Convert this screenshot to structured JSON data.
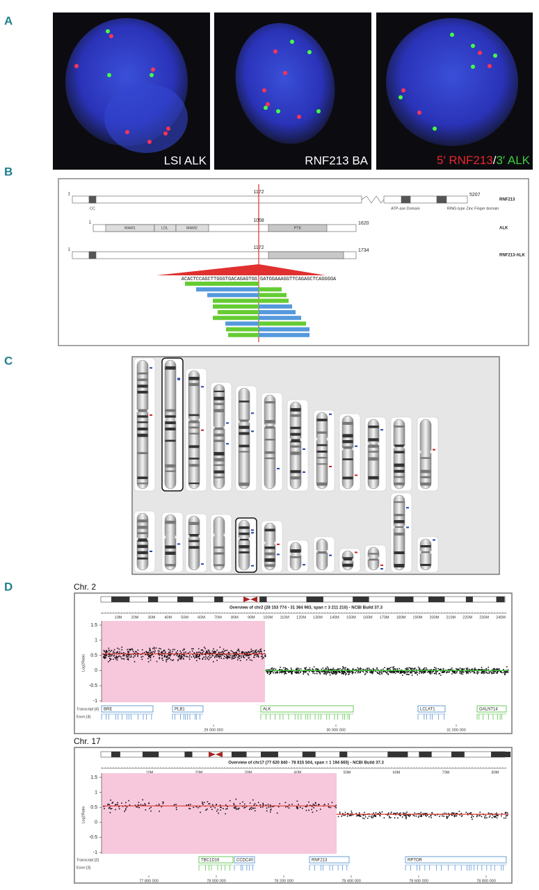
{
  "panel_a": {
    "letter": "A",
    "captions": [
      "LSI ALK",
      "RNF213 BA"
    ],
    "caption3": {
      "left": "5′ RNF213",
      "sep": "/",
      "right": "3′ ALK"
    }
  },
  "panel_b": {
    "letter": "B",
    "rnf213": {
      "start": "1",
      "break": "1172",
      "end": "5207",
      "name": "RNF213",
      "domains": [
        "CC",
        "ATP-ase Domain",
        "RING-type Zinc Finger domain"
      ]
    },
    "alk": {
      "start": "1",
      "break": "1058",
      "end": "1620",
      "name": "ALK",
      "domains": [
        "MAM1",
        "LDL",
        "MAM2",
        "PTK"
      ]
    },
    "fusion": {
      "start": "1",
      "break": "1172",
      "end": "1734",
      "name": "RNF213-ALK"
    },
    "sequence": {
      "left": "ACACTCCAGCTTGGGTGACAGAGTGG",
      "right": "GATGGAAAGGTTCAGAGCTCAGGGGA"
    }
  },
  "panel_c": {
    "letter": "C"
  },
  "panel_d": {
    "letter": "D",
    "plots": [
      {
        "label": "Chr. 2",
        "overview": "Overview of chr2 (28 153 774 - 31 364 983, span = 3 211 210) - NCBI Build 37.3",
        "ruler": [
          "10M",
          "20M",
          "30M",
          "40M",
          "50M",
          "60M",
          "70M",
          "80M",
          "90M",
          "100M",
          "110M",
          "120M",
          "130M",
          "140M",
          "150M",
          "160M",
          "170M",
          "180M",
          "190M",
          "200M",
          "210M",
          "220M",
          "230M",
          "240M"
        ],
        "y_axis_label": "Log2Ratio",
        "yticks": [
          "1.5",
          "1",
          "0.5",
          "0",
          "-0.5",
          "-1"
        ],
        "transcript": "Transcript [4]",
        "exon": "Exon [4]",
        "genes": [
          "BRE",
          "PLB1",
          "ALK",
          "LCLAT1",
          "GALNT14"
        ],
        "positions": [
          "29 000 000",
          "30 000 000",
          "31 000 000"
        ]
      },
      {
        "label": "Chr. 17",
        "overview": "Overview of chr17 (77 620 840 - 78 815 504, span = 1 194 665) - NCBI Build 37.3",
        "ruler": [
          "10M",
          "20M",
          "30M",
          "40M",
          "50M",
          "60M",
          "70M",
          "80M"
        ],
        "y_axis_label": "Log2Ratio",
        "yticks": [
          "1.5",
          "1",
          "0.5",
          "0",
          "-0.5",
          "-1"
        ],
        "transcript": "Transcript [3]",
        "exon": "Exon [3]",
        "genes": [
          "TBC1D16",
          "CCDC40",
          "RNF213",
          "RPTOR"
        ],
        "positions": [
          "77 800 000",
          "78 000 000",
          "78 200 000",
          "78 400 000",
          "78 600 000",
          "78 800 000"
        ]
      }
    ]
  }
}
